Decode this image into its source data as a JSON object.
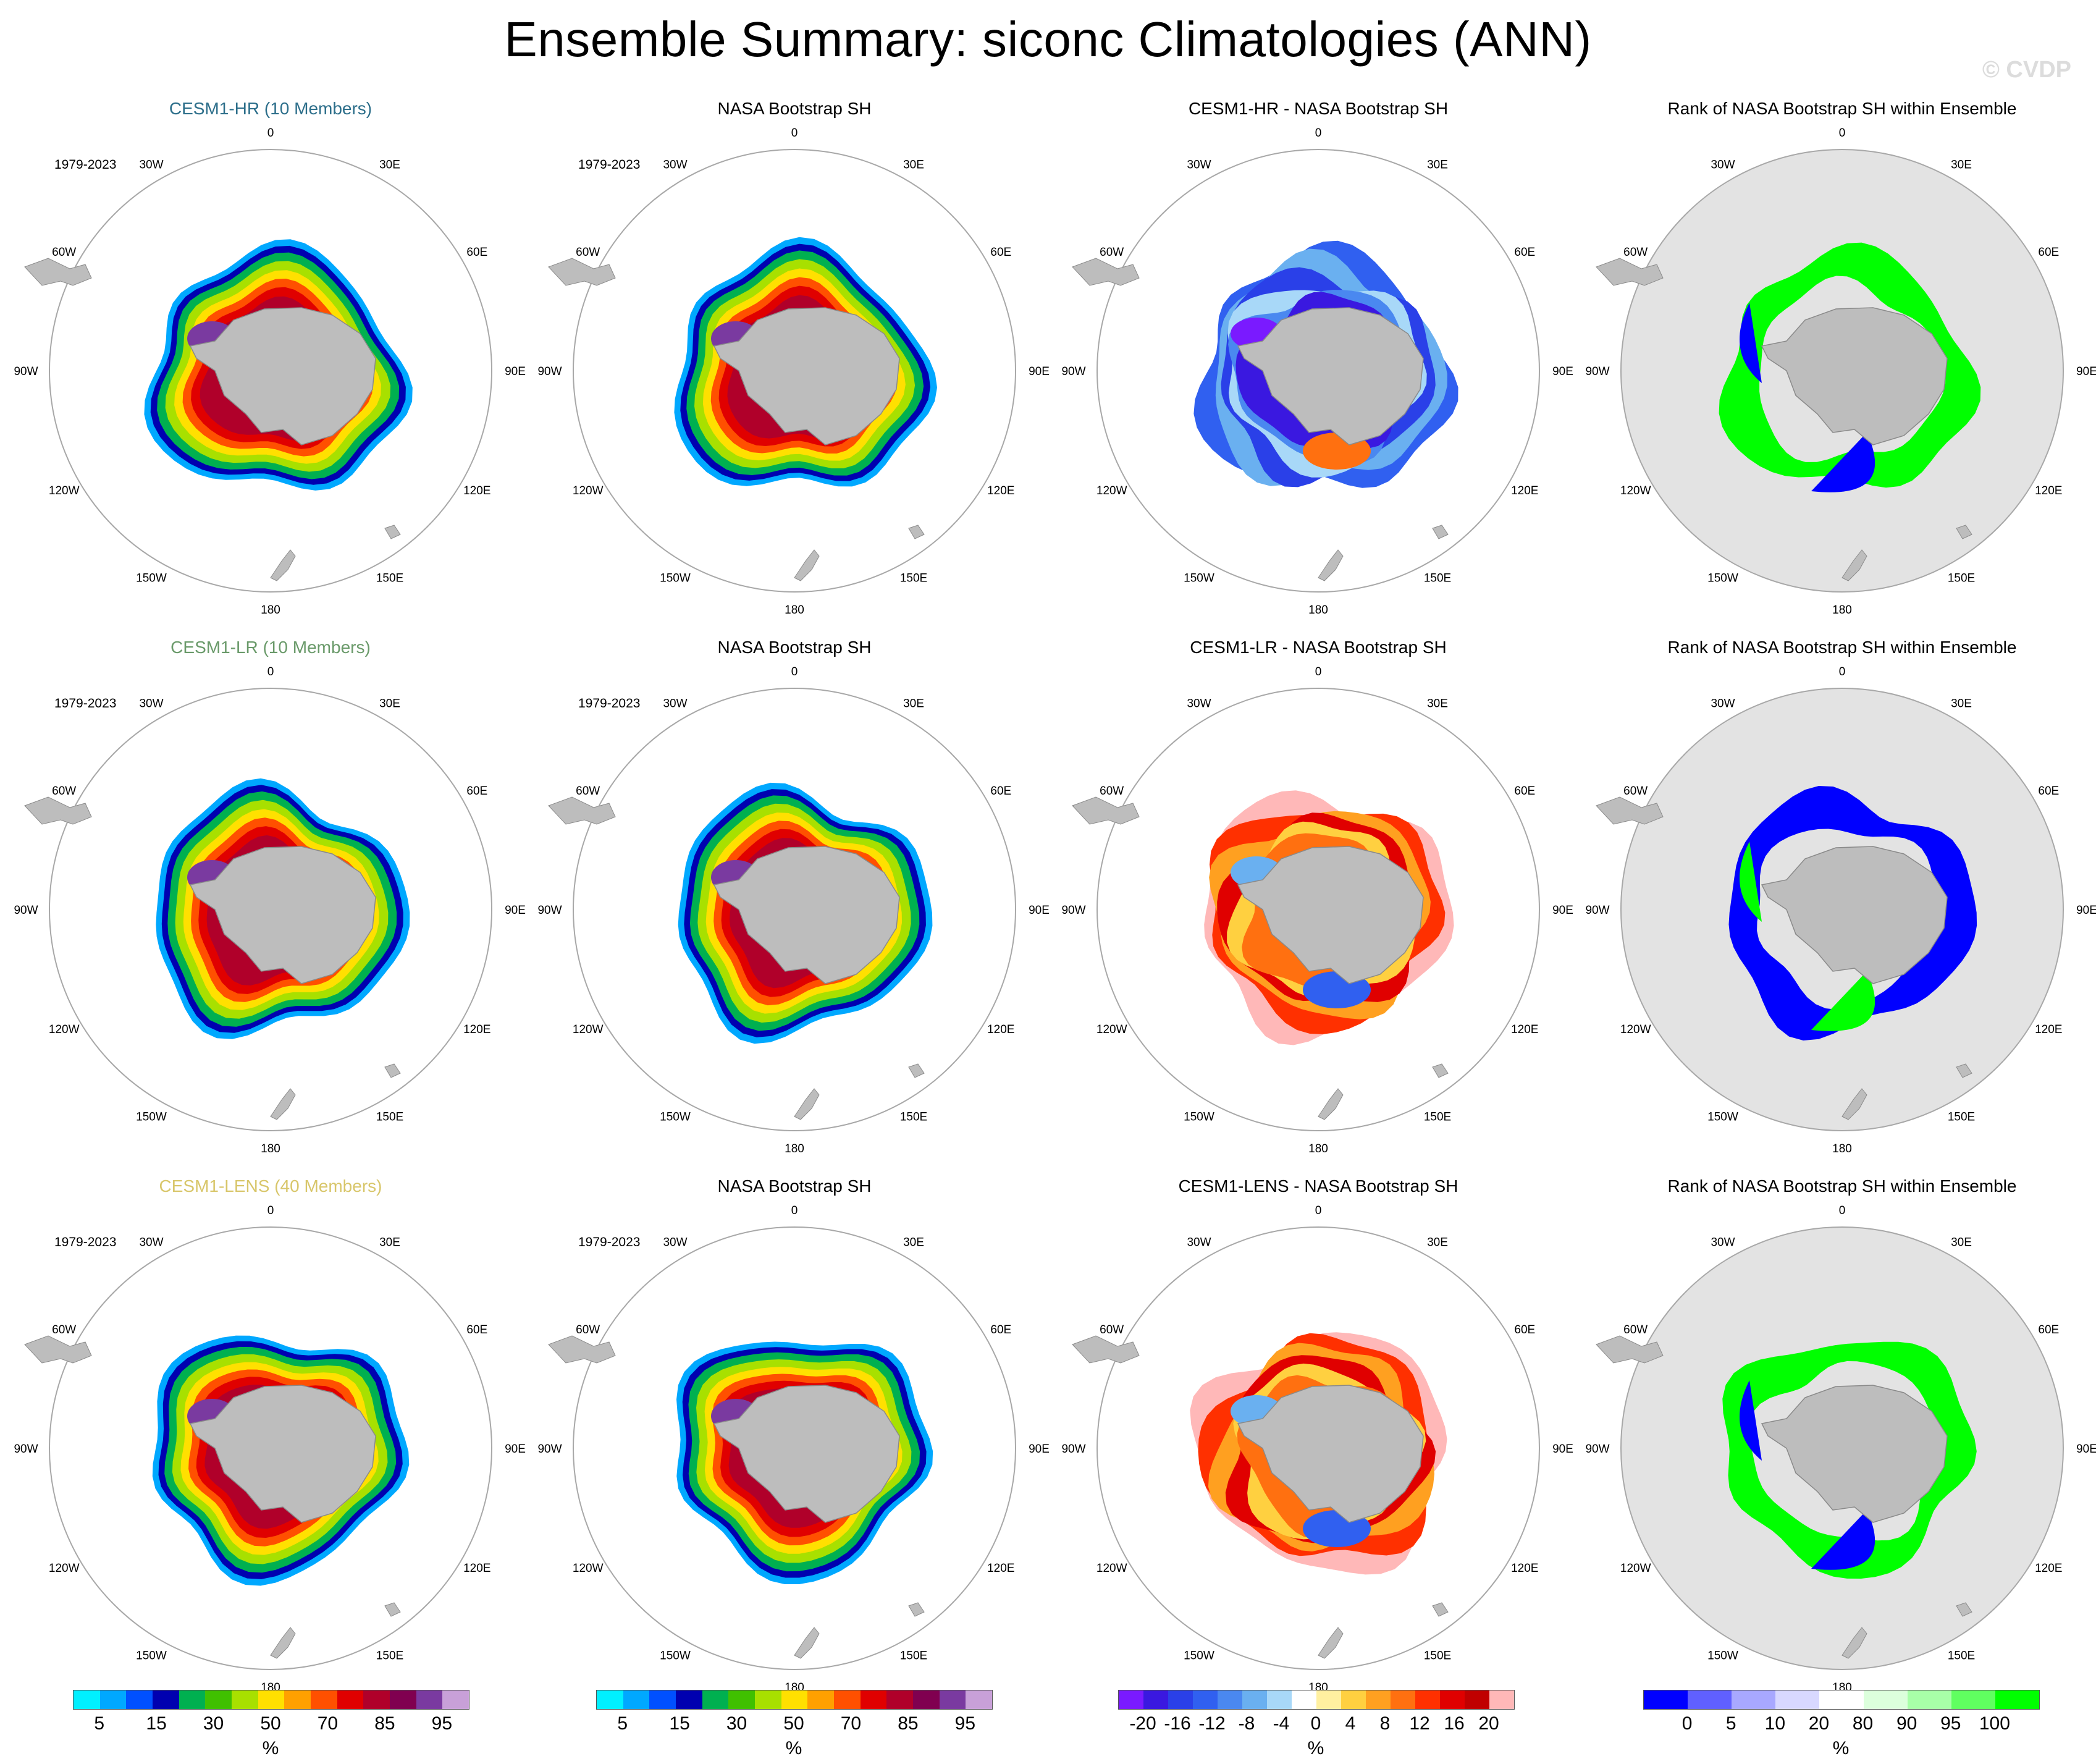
{
  "figure": {
    "title": "Ensemble Summary: siconc Climatologies (ANN)",
    "watermark": "© CVDP",
    "period": "1979-2023",
    "lon_labels": [
      "0",
      "30E",
      "60E",
      "90E",
      "120E",
      "150E",
      "180",
      "150W",
      "120W",
      "90W",
      "60W",
      "30W"
    ]
  },
  "rows": [
    {
      "model_title": "CESM1-HR (10 Members)",
      "model_color": "#2c6e8a",
      "obs_title": "NASA Bootstrap SH",
      "diff_title": "CESM1-HR - NASA Bootstrap SH",
      "rank_title": "Rank of NASA Bootstrap SH within Ensemble"
    },
    {
      "model_title": "CESM1-LR (10 Members)",
      "model_color": "#6a9a6a",
      "obs_title": "NASA Bootstrap SH",
      "diff_title": "CESM1-LR - NASA Bootstrap SH",
      "rank_title": "Rank of NASA Bootstrap SH within Ensemble"
    },
    {
      "model_title": "CESM1-LENS (40 Members)",
      "model_color": "#d8c66a",
      "obs_title": "NASA Bootstrap SH",
      "diff_title": "CESM1-LENS - NASA Bootstrap SH",
      "rank_title": "Rank of NASA Bootstrap SH within Ensemble"
    }
  ],
  "colorbars": {
    "concentration": {
      "unit": "%",
      "labels": [
        "5",
        "15",
        "30",
        "50",
        "70",
        "85",
        "95"
      ],
      "colors": [
        "#00f0ff",
        "#00a8ff",
        "#0050ff",
        "#0000b0",
        "#00b050",
        "#40c000",
        "#a8e000",
        "#ffe000",
        "#ffa000",
        "#ff5000",
        "#e00000",
        "#b0002a",
        "#800050",
        "#7a3aa0",
        "#c8a0d8"
      ]
    },
    "difference": {
      "unit": "%",
      "labels": [
        "-20",
        "-16",
        "-12",
        "-8",
        "-4",
        "0",
        "4",
        "8",
        "12",
        "16",
        "20"
      ],
      "colors": [
        "#7a1aff",
        "#3a18e0",
        "#2a40e8",
        "#3060f0",
        "#4a88f0",
        "#6ab0f0",
        "#a8d8f8",
        "#ffffff",
        "#fff0a0",
        "#ffd040",
        "#ffa020",
        "#ff7010",
        "#ff3000",
        "#e00000",
        "#c00000",
        "#ffb8b8"
      ]
    },
    "rank": {
      "unit": "%",
      "labels": [
        "0",
        "5",
        "10",
        "20",
        "80",
        "90",
        "95",
        "100"
      ],
      "colors": [
        "#0000ff",
        "#6060ff",
        "#a8a8ff",
        "#d8d8ff",
        "#ffffff",
        "#dcffdc",
        "#a8ffa8",
        "#60ff60",
        "#00ff00"
      ]
    }
  }
}
